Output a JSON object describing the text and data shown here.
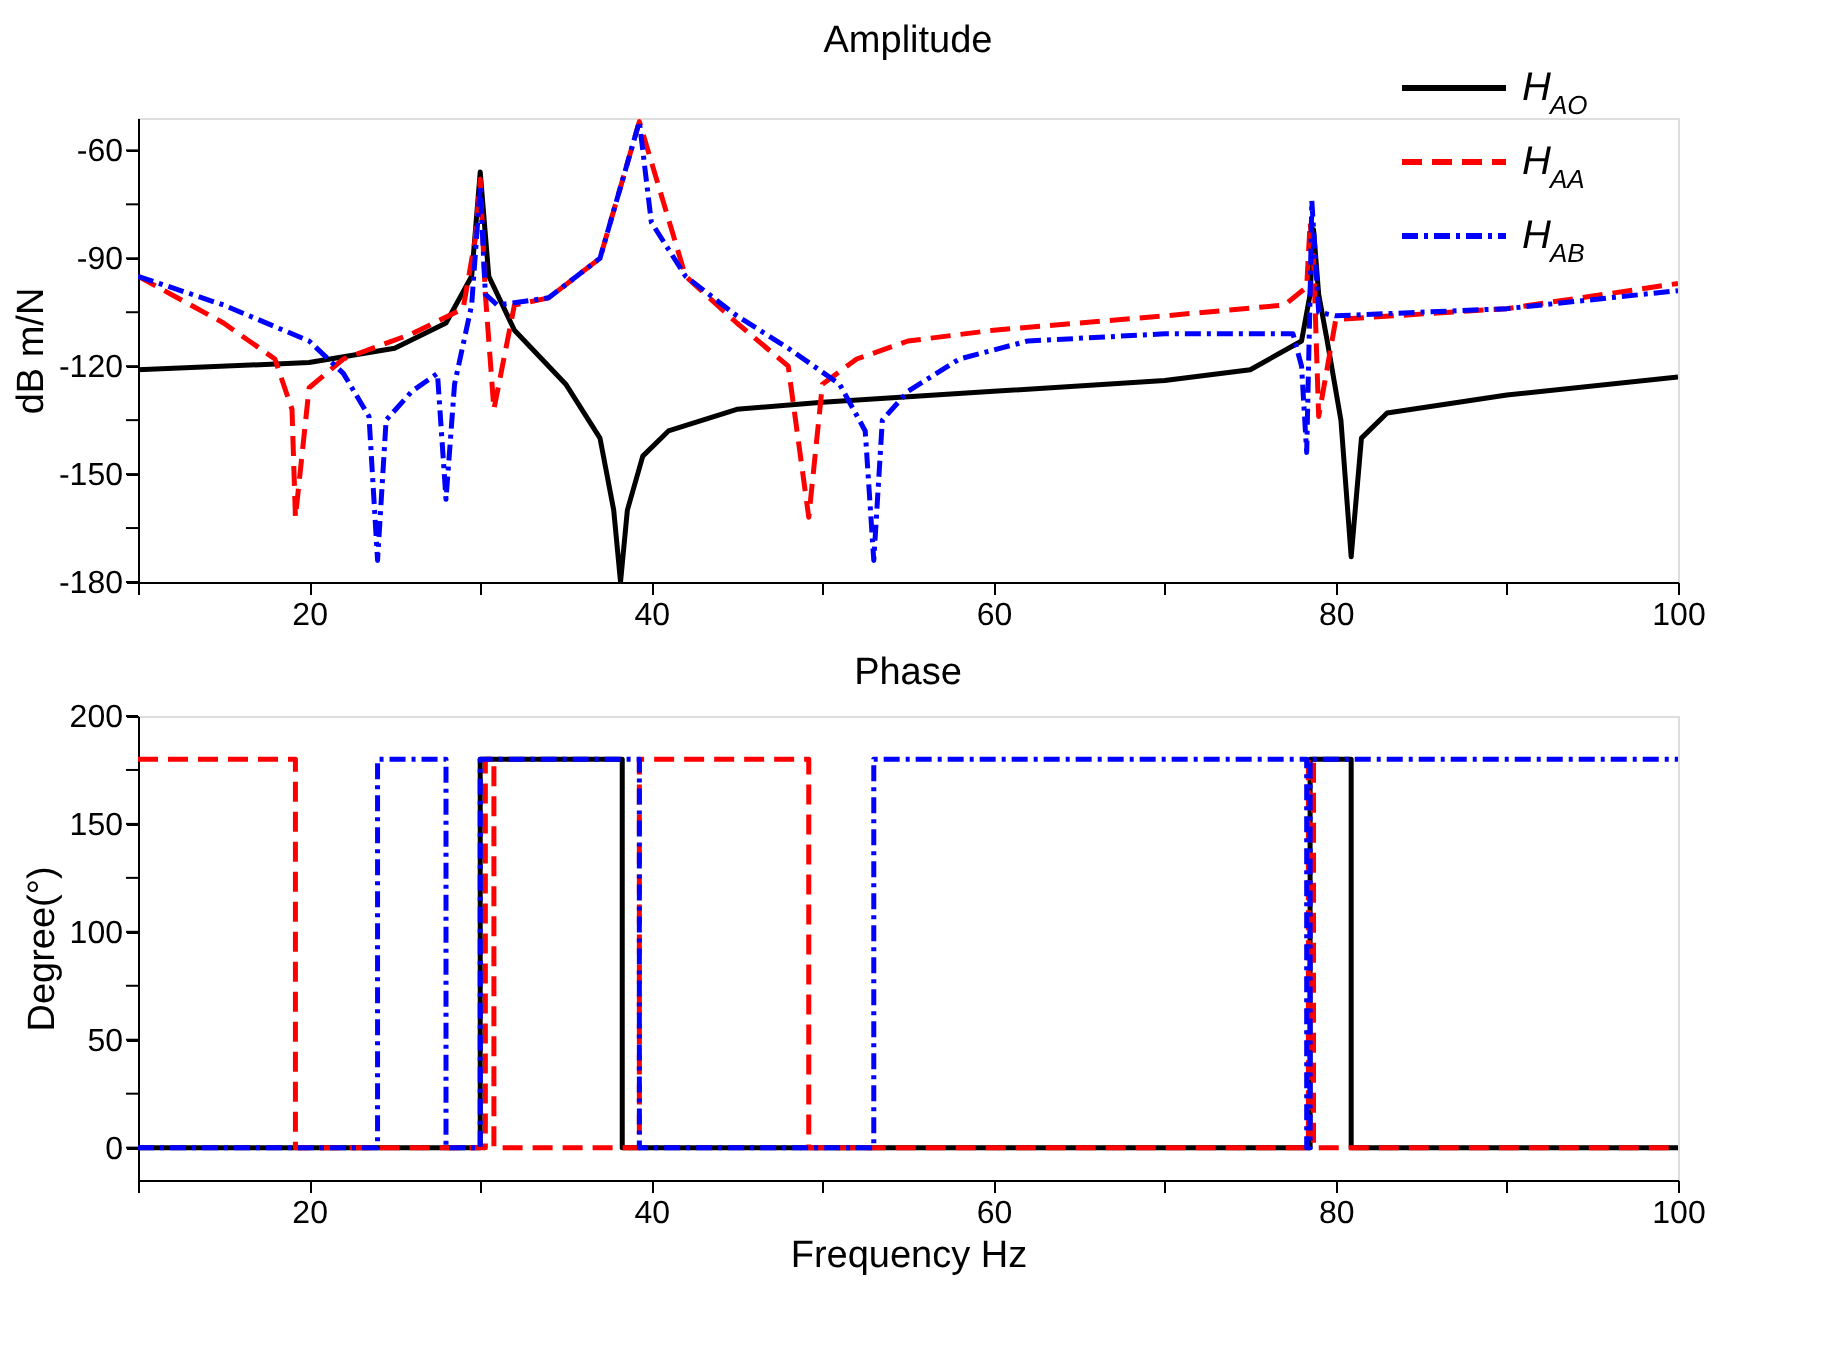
{
  "chart_data": [
    {
      "type": "line",
      "title": "Amplitude",
      "ylabel": "dB m/N",
      "legend": "top right",
      "grid": false,
      "xlim": [
        10,
        100
      ],
      "ylim": [
        -180,
        -51
      ],
      "xticks": [
        {
          "value": 10,
          "label": null
        },
        {
          "value": 20,
          "label": "20"
        },
        {
          "value": 30,
          "label": null
        },
        {
          "value": 40,
          "label": "40"
        },
        {
          "value": 50,
          "label": null
        },
        {
          "value": 60,
          "label": "60"
        },
        {
          "value": 70,
          "label": null
        },
        {
          "value": 80,
          "label": "80"
        },
        {
          "value": 90,
          "label": null
        },
        {
          "value": 100,
          "label": "100"
        }
      ],
      "yticks": [
        -60,
        {
          "value": -75,
          "label": null
        },
        -90,
        {
          "value": -105,
          "label": null
        },
        -120,
        {
          "value": -135,
          "label": null
        },
        -150,
        {
          "value": -165,
          "label": null
        },
        -180
      ],
      "series": [
        {
          "name": "H$_{AO}$",
          "color": "#000000",
          "line_style": "solid",
          "x": [
            10,
            20,
            25,
            28,
            29.5,
            30,
            30.5,
            32,
            35,
            37,
            37.8,
            38.2,
            38.6,
            39.5,
            41,
            45,
            50,
            60,
            70,
            75,
            78,
            78.5,
            78.7,
            79,
            79.5,
            80.3,
            80.9,
            81.5,
            83,
            90,
            100
          ],
          "values": [
            -121,
            -119,
            -115,
            -108,
            -95,
            -66,
            -95,
            -110,
            -125,
            -140,
            -160,
            -180,
            -160,
            -145,
            -138,
            -132,
            -130,
            -127,
            -124,
            -121,
            -113,
            -100,
            -82,
            -100,
            -113,
            -135,
            -173,
            -140,
            -133,
            -128,
            -123
          ]
        },
        {
          "name": "H$_{AA}$",
          "color": "#ff0000",
          "line_style": "dashed",
          "x": [
            10,
            15,
            18,
            19,
            19.2,
            20,
            22,
            26,
            29,
            29.7,
            30,
            30.3,
            30.8,
            32,
            34,
            37,
            39.3,
            42,
            45,
            48,
            49.2,
            50,
            52,
            55,
            60,
            70,
            77,
            78.3,
            78.5,
            78.7,
            79,
            80,
            90,
            100
          ],
          "values": [
            -95,
            -108,
            -118,
            -132,
            -162,
            -126,
            -118,
            -111,
            -104,
            -85,
            -68,
            -100,
            -132,
            -103,
            -101,
            -90,
            -52,
            -95,
            -108,
            -120,
            -162,
            -125,
            -118,
            -113,
            -110,
            -106,
            -103,
            -98,
            -80,
            -90,
            -134,
            -107,
            -104,
            -97
          ]
        },
        {
          "name": "H$_{AB}$",
          "color": "#0000ff",
          "line_style": "dashdot",
          "x": [
            10,
            15,
            20,
            22,
            23.5,
            24,
            24.5,
            26,
            27.5,
            28,
            28.5,
            29.5,
            30,
            30.3,
            31,
            34,
            37,
            39.3,
            40,
            42,
            45,
            48,
            51,
            52.5,
            53,
            53.5,
            55,
            58,
            62,
            70,
            77.5,
            78,
            78.3,
            78.5,
            78.6,
            79,
            80,
            90,
            100
          ],
          "values": [
            -95,
            -103,
            -113,
            -122,
            -134,
            -174,
            -135,
            -127,
            -122,
            -157,
            -125,
            -103,
            -70,
            -100,
            -103,
            -101,
            -90,
            -52,
            -80,
            -95,
            -106,
            -115,
            -125,
            -138,
            -174,
            -135,
            -127,
            -118,
            -113,
            -111,
            -111,
            -120,
            -144,
            -100,
            -74,
            -105,
            -106,
            -104,
            -99
          ]
        }
      ]
    },
    {
      "type": "line",
      "title": "Phase",
      "xlabel": "Frequency Hz",
      "ylabel": "Degree(°)",
      "legend": false,
      "grid": false,
      "xlim": [
        10,
        100
      ],
      "ylim": [
        -15,
        200
      ],
      "xticks": [
        {
          "value": 10,
          "label": null
        },
        {
          "value": 20,
          "label": "20"
        },
        {
          "value": 30,
          "label": null
        },
        {
          "value": 40,
          "label": "40"
        },
        {
          "value": 50,
          "label": null
        },
        {
          "value": 60,
          "label": "60"
        },
        {
          "value": 70,
          "label": null
        },
        {
          "value": 80,
          "label": "80"
        },
        {
          "value": 90,
          "label": null
        },
        {
          "value": 100,
          "label": "100"
        }
      ],
      "yticks": [
        0,
        {
          "value": 25,
          "label": null
        },
        50,
        {
          "value": 75,
          "label": null
        },
        100,
        {
          "value": 125,
          "label": null
        },
        150,
        {
          "value": 175,
          "label": null
        },
        200
      ],
      "series": [
        {
          "color": "#000000",
          "line_style": "solid",
          "x": [
            10,
            30,
            30,
            38.3,
            38.3,
            78.5,
            78.5,
            80.9,
            80.9,
            100
          ],
          "values": [
            0,
            0,
            180,
            180,
            0,
            0,
            180,
            180,
            0,
            0
          ]
        },
        {
          "color": "#ff0000",
          "line_style": "dashed",
          "x": [
            10,
            19.2,
            19.2,
            30.3,
            30.3,
            30.8,
            30.8,
            39.3,
            39.3,
            49.2,
            49.2,
            78.4,
            78.4,
            78.7,
            78.7,
            100
          ],
          "values": [
            180,
            180,
            0,
            0,
            180,
            180,
            0,
            0,
            180,
            180,
            0,
            0,
            180,
            180,
            0,
            0
          ]
        },
        {
          "color": "#0000ff",
          "line_style": "dashdot",
          "x": [
            10,
            24,
            24,
            28,
            28,
            30,
            30,
            39.3,
            39.3,
            53,
            53,
            78.3,
            78.3,
            78.5,
            78.5,
            100
          ],
          "values": [
            0,
            0,
            180,
            180,
            0,
            0,
            180,
            180,
            0,
            0,
            180,
            180,
            0,
            0,
            180,
            180
          ]
        }
      ]
    }
  ]
}
